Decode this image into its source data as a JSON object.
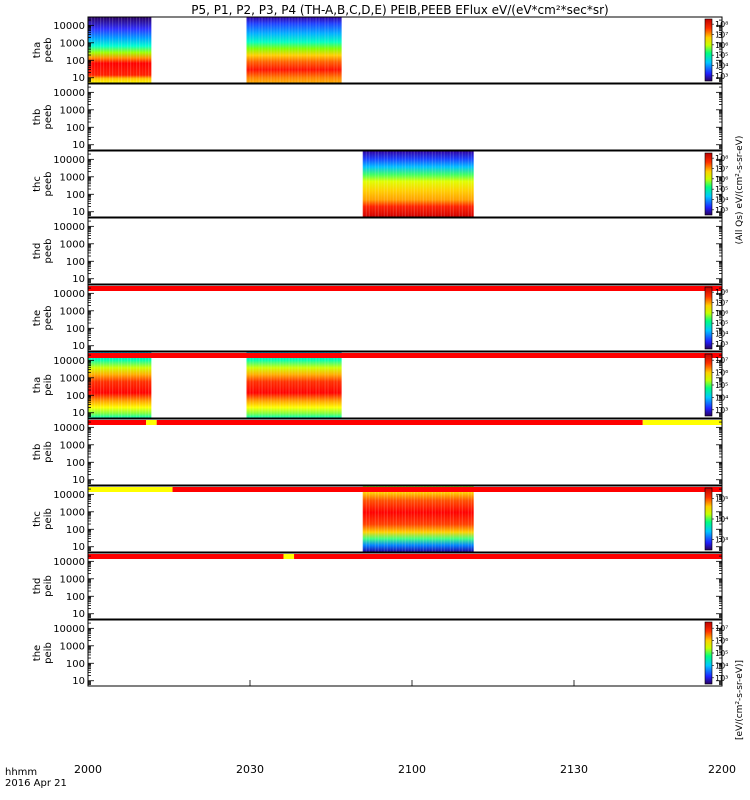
{
  "title": "P5, P1, P2, P3, P4 (TH-A,B,C,D,E) PEIB,PEEB EFlux eV/(eV*cm²*sec*sr)",
  "xaxis": {
    "ticks": [
      "2000",
      "2030",
      "2100",
      "2130",
      "2200"
    ],
    "label_line1": "hhmm",
    "label_line2": "2016 Apr 21"
  },
  "yaxis_ticks": [
    "10",
    "100",
    "1000",
    "10000"
  ],
  "colorbar_label_peeb": "(All Qs) eV/(cm²-s-sr-eV)",
  "colorbar_label_peib": "[eV/(cm²-s-sr-eV)]",
  "colors": {
    "status_red": "#ff0000",
    "status_yellow": "#ffff00",
    "fill_gap": "#000000"
  },
  "chart_data": {
    "type": "heatmap",
    "x_range_hhmm": [
      "2000",
      "2200"
    ],
    "y_scale": "log",
    "y_range": [
      5,
      30000
    ],
    "panels": [
      {
        "id": "tha-peeb",
        "label": [
          "tha",
          "peeb"
        ],
        "colorbar": [
          "10³",
          "10⁴",
          "10⁵",
          "10⁶",
          "10⁷",
          "10⁸"
        ],
        "data_blocks": [
          {
            "start": "2000",
            "end": "2012",
            "profile": "electron-high"
          },
          {
            "start": "2030",
            "end": "2048",
            "profile": "electron-mid"
          }
        ],
        "status_bar": []
      },
      {
        "id": "thb-peeb",
        "label": [
          "thb",
          "peeb"
        ],
        "colorbar": [],
        "data_blocks": [],
        "status_bar": []
      },
      {
        "id": "thc-peeb",
        "label": [
          "thc",
          "peeb"
        ],
        "colorbar": [
          "10³",
          "10⁴",
          "10⁵",
          "10⁶",
          "10⁷",
          "10⁸"
        ],
        "data_blocks": [
          {
            "start": "2052",
            "end": "2113",
            "profile": "electron-c"
          }
        ],
        "status_bar": []
      },
      {
        "id": "thd-peeb",
        "label": [
          "thd",
          "peeb"
        ],
        "colorbar": [],
        "data_blocks": [],
        "status_bar": []
      },
      {
        "id": "the-peeb",
        "label": [
          "the",
          "peeb"
        ],
        "colorbar": [
          "10³",
          "10⁴",
          "10⁵",
          "10⁶",
          "10⁷",
          "10⁸"
        ],
        "data_blocks": [],
        "status_bar": [
          {
            "start": "2000",
            "end": "2200",
            "flag": "red"
          }
        ]
      },
      {
        "id": "tha-peib",
        "label": [
          "tha",
          "peib"
        ],
        "colorbar": [
          "10³",
          "10⁴",
          "10⁵",
          "10⁶",
          "10⁷"
        ],
        "data_blocks": [
          {
            "start": "2000",
            "end": "2012",
            "profile": "ion-a"
          },
          {
            "start": "2030",
            "end": "2048",
            "profile": "ion-a"
          }
        ],
        "status_bar": [
          {
            "start": "2000",
            "end": "2200",
            "flag": "red"
          }
        ]
      },
      {
        "id": "thb-peib",
        "label": [
          "thb",
          "peib"
        ],
        "colorbar": [],
        "data_blocks": [],
        "status_bar": [
          {
            "start": "2000",
            "end": "2011",
            "flag": "red"
          },
          {
            "start": "2011",
            "end": "2013",
            "flag": "yellow"
          },
          {
            "start": "2013",
            "end": "2145",
            "flag": "red"
          },
          {
            "start": "2145",
            "end": "2200",
            "flag": "yellow"
          }
        ]
      },
      {
        "id": "thc-peib",
        "label": [
          "thc",
          "peib"
        ],
        "colorbar": [
          "10³",
          "10⁴",
          "10⁵"
        ],
        "data_blocks": [
          {
            "start": "2052",
            "end": "2113",
            "profile": "ion-c"
          }
        ],
        "status_bar": [
          {
            "start": "2000",
            "end": "2016",
            "flag": "yellow"
          },
          {
            "start": "2016",
            "end": "2200",
            "flag": "red"
          }
        ]
      },
      {
        "id": "thd-peib",
        "label": [
          "thd",
          "peib"
        ],
        "colorbar": [],
        "data_blocks": [],
        "status_bar": [
          {
            "start": "2000",
            "end": "2037",
            "flag": "red"
          },
          {
            "start": "2037",
            "end": "2039",
            "flag": "yellow"
          },
          {
            "start": "2039",
            "end": "2200",
            "flag": "red"
          }
        ]
      },
      {
        "id": "the-peib",
        "label": [
          "the",
          "peib"
        ],
        "colorbar": [
          "10³",
          "10⁴",
          "10⁵",
          "10⁶",
          "10⁷"
        ],
        "data_blocks": [],
        "status_bar": []
      }
    ]
  }
}
